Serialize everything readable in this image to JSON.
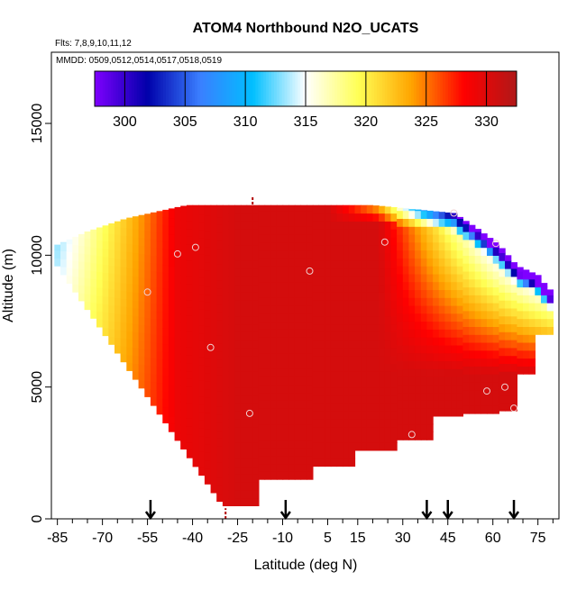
{
  "chart_data": {
    "type": "heatmap",
    "title": "ATOM4 Northbound N2O_UCATS",
    "subtitle_flights": "Flts: 7,8,9,10,11,12",
    "subtitle_dates": "MMDD: 0509,0512,0514,0517,0518,0519",
    "xlabel": "Latitude (deg N)",
    "ylabel": "Altitude (m)",
    "xlim": [
      -87,
      82
    ],
    "ylim": [
      0,
      17700
    ],
    "x_ticks": [
      -85,
      -70,
      -55,
      -40,
      -25,
      -10,
      5,
      15,
      30,
      45,
      60,
      75
    ],
    "x_minor_ticks": [
      -80,
      -75,
      -65,
      -60,
      -50,
      -45,
      -35,
      -30,
      -20,
      -15,
      -5,
      0,
      10,
      20,
      25,
      35,
      40,
      50,
      55,
      65,
      70,
      80
    ],
    "y_ticks": [
      0,
      5000,
      10000,
      15000
    ],
    "colorbar": {
      "min": 297.5,
      "max": 332.5,
      "ticks": [
        300,
        305,
        310,
        315,
        320,
        325,
        330
      ],
      "stops": [
        "#7f00ff",
        "#0000aa",
        "#3a7fff",
        "#00bfff",
        "#ffffff",
        "#ffff55",
        "#ffa500",
        "#ff0000",
        "#b01818"
      ],
      "separators": [
        300,
        305,
        310,
        315,
        320,
        325,
        330
      ]
    },
    "profile_arrows_lat": [
      -54,
      -9,
      38,
      45,
      67
    ],
    "dashed_markers": [
      {
        "lat": -20,
        "alt_from": 12200,
        "alt_to": 11900
      },
      {
        "lat": -29,
        "alt_from": 0,
        "alt_to": 400
      }
    ],
    "grid": false,
    "legend": "top (horizontal colorbar)",
    "sample_points": [
      {
        "lat": -55,
        "alt": 8600
      },
      {
        "lat": -45,
        "alt": 10050
      },
      {
        "lat": -39,
        "alt": 10300
      },
      {
        "lat": -34,
        "alt": 6500
      },
      {
        "lat": -21,
        "alt": 4000
      },
      {
        "lat": -1,
        "alt": 9400
      },
      {
        "lat": 24,
        "alt": 10500
      },
      {
        "lat": 33,
        "alt": 3200
      },
      {
        "lat": 47,
        "alt": 11600
      },
      {
        "lat": 58,
        "alt": 4850
      },
      {
        "lat": 61,
        "alt": 10450
      },
      {
        "lat": 64,
        "alt": 5000
      },
      {
        "lat": 67,
        "alt": 4200
      }
    ]
  }
}
